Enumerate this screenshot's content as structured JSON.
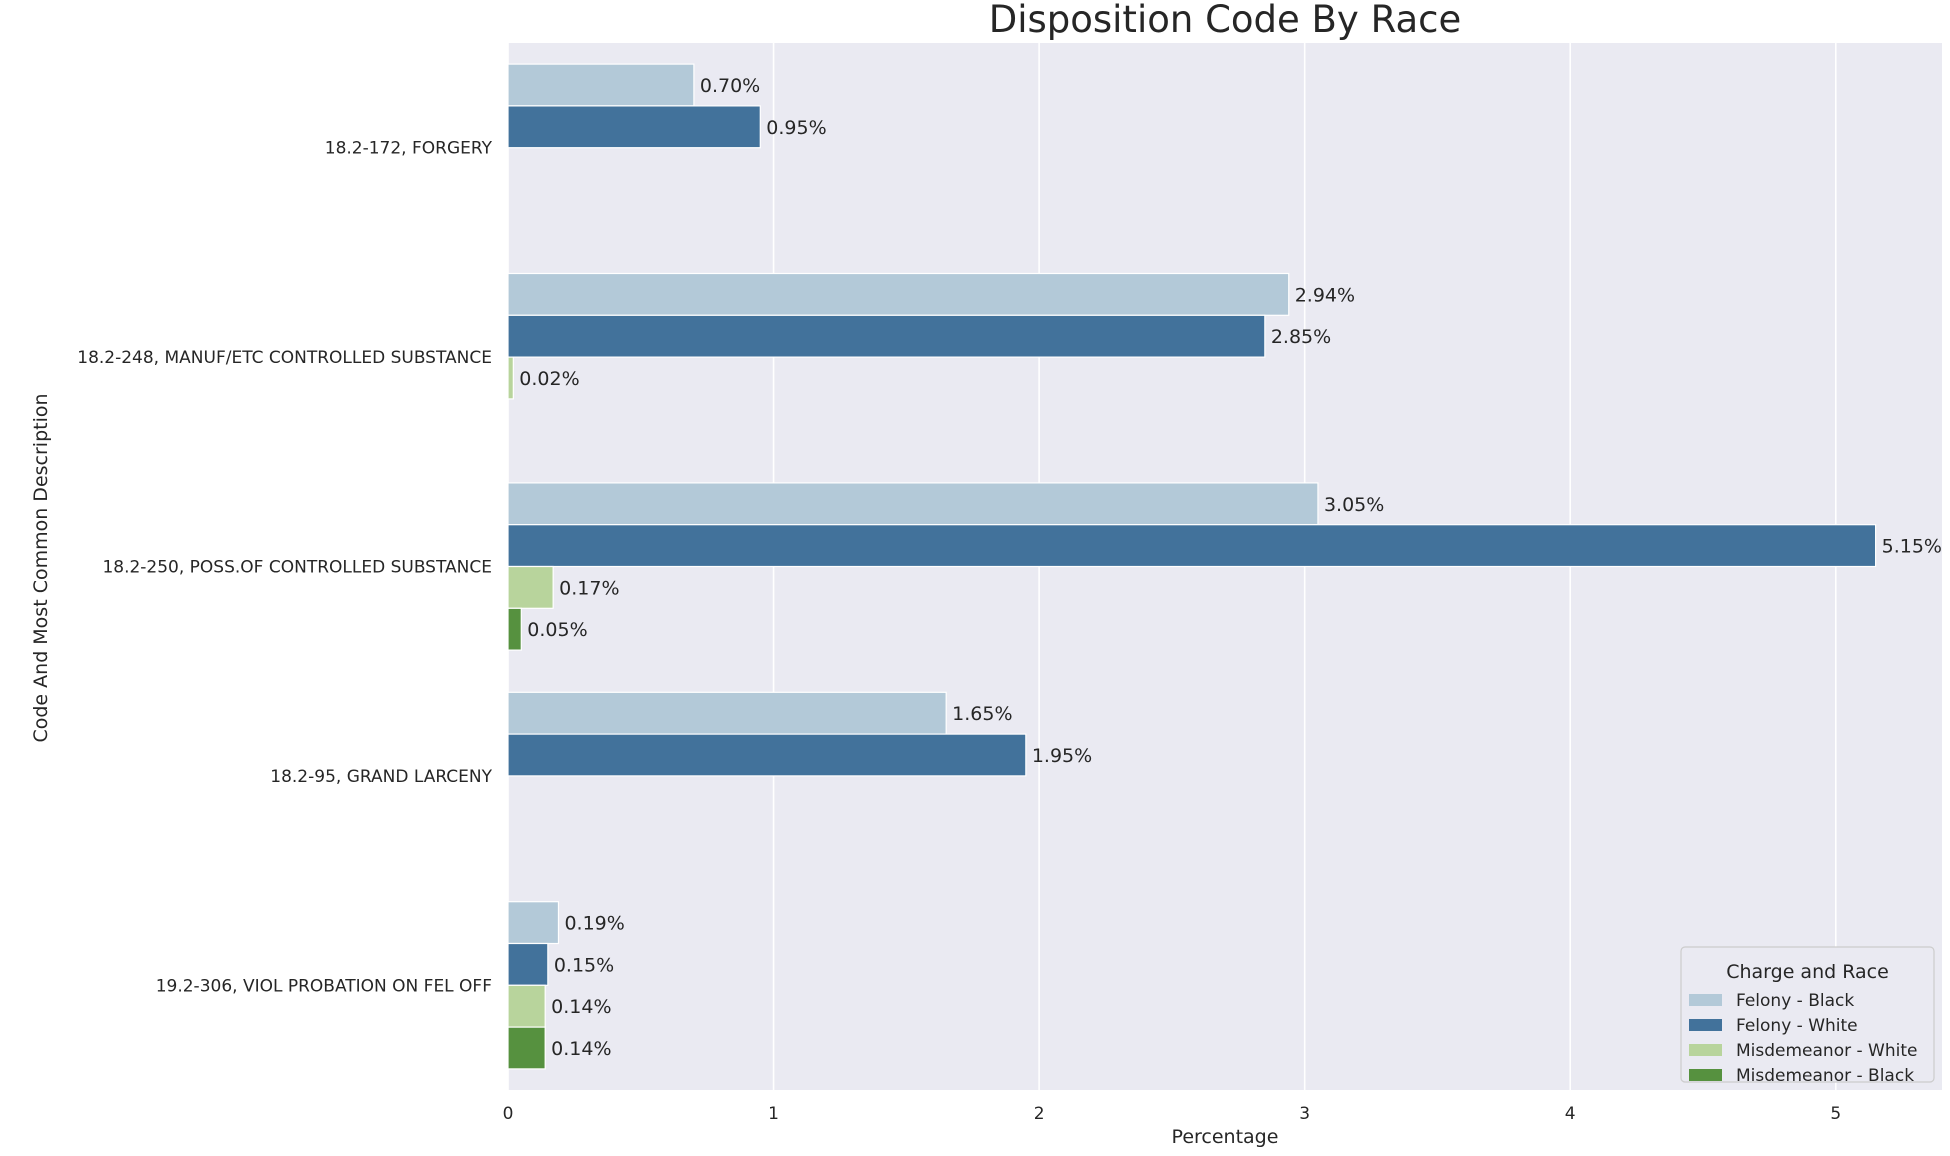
{
  "chart_data": {
    "type": "bar",
    "orientation": "horizontal",
    "title": "Disposition Code By Race",
    "xlabel": "Percentage",
    "ylabel": "Code And Most Common Description",
    "xlim": [
      0,
      5.4
    ],
    "xticks": [
      0,
      1,
      2,
      3,
      4,
      5
    ],
    "grid": true,
    "legend_title": "Charge and Race",
    "legend_position": "bottom-right",
    "categories": [
      "18.2-172, FORGERY",
      "18.2-248, MANUF/ETC CONTROLLED SUBSTANCE",
      "18.2-250, POSS.OF CONTROLLED SUBSTANCE",
      "18.2-95, GRAND LARCENY",
      "19.2-306, VIOL PROBATION ON FEL OFF"
    ],
    "series": [
      {
        "name": "Felony - Black",
        "color": "#b3c9d8",
        "values": [
          0.7,
          2.94,
          3.05,
          1.65,
          0.19
        ],
        "labels": [
          "0.70%",
          "2.94%",
          "3.05%",
          "1.65%",
          "0.19%"
        ]
      },
      {
        "name": "Felony - White",
        "color": "#42729b",
        "values": [
          0.95,
          2.85,
          5.15,
          1.95,
          0.15
        ],
        "labels": [
          "0.95%",
          "2.85%",
          "5.15%",
          "1.95%",
          "0.15%"
        ]
      },
      {
        "name": "Misdemeanor - White",
        "color": "#b8d49c",
        "values": [
          null,
          0.02,
          0.17,
          null,
          0.14
        ],
        "labels": [
          "",
          "0.02%",
          "0.17%",
          "",
          "0.14%"
        ]
      },
      {
        "name": "Misdemeanor - Black",
        "color": "#56913f",
        "values": [
          null,
          null,
          0.05,
          null,
          0.14
        ],
        "labels": [
          "",
          "",
          "0.05%",
          "",
          "0.14%"
        ]
      }
    ]
  }
}
